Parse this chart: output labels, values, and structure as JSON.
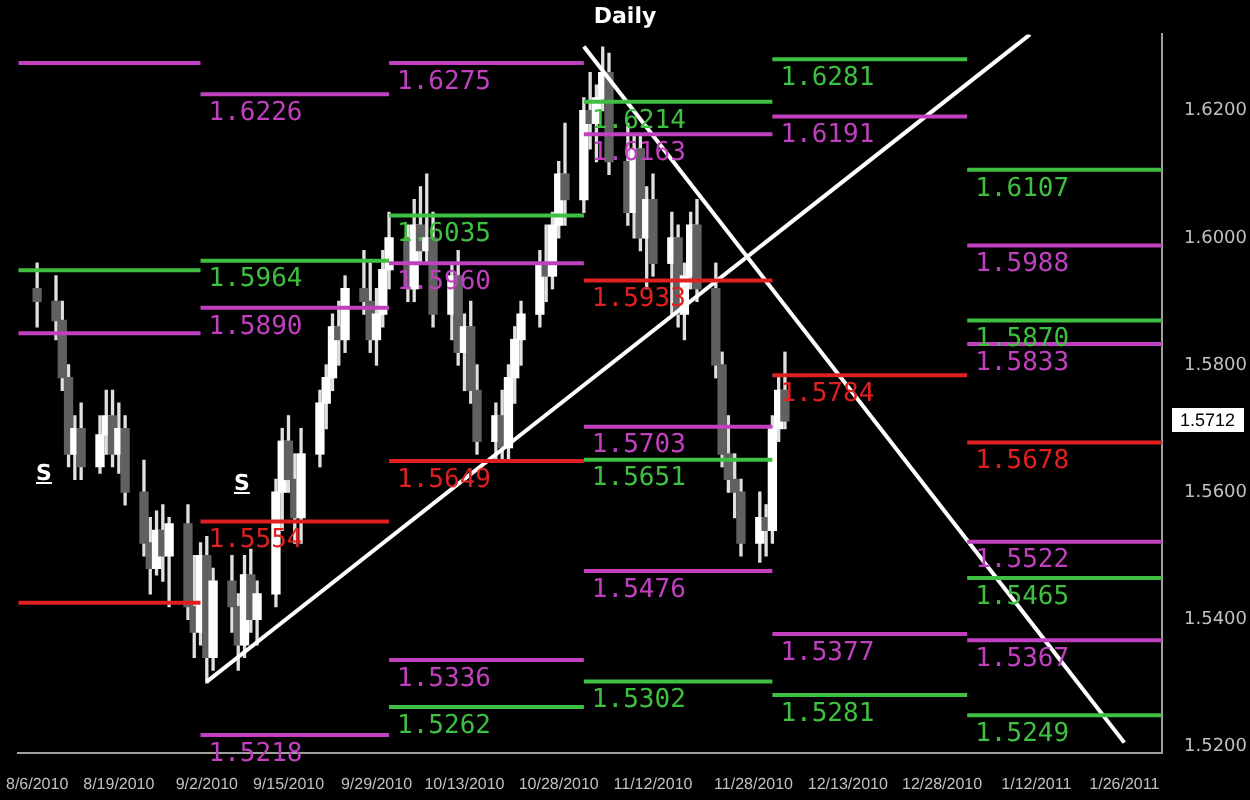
{
  "chart_data": {
    "type": "candlestick",
    "title": "Daily",
    "x": [
      "2010-08-06",
      "2010-08-09",
      "2010-08-10",
      "2010-08-11",
      "2010-08-12",
      "2010-08-13",
      "2010-08-16",
      "2010-08-17",
      "2010-08-18",
      "2010-08-19",
      "2010-08-20",
      "2010-08-23",
      "2010-08-24",
      "2010-08-25",
      "2010-08-26",
      "2010-08-27",
      "2010-08-30",
      "2010-08-31",
      "2010-09-01",
      "2010-09-02",
      "2010-09-03",
      "2010-09-06",
      "2010-09-07",
      "2010-09-08",
      "2010-09-09",
      "2010-09-10",
      "2010-09-13",
      "2010-09-14",
      "2010-09-15",
      "2010-09-16",
      "2010-09-17",
      "2010-09-20",
      "2010-09-21",
      "2010-09-22",
      "2010-09-23",
      "2010-09-24",
      "2010-09-27",
      "2010-09-28",
      "2010-09-29",
      "2010-09-30",
      "2010-10-01",
      "2010-10-04",
      "2010-10-05",
      "2010-10-06",
      "2010-10-07",
      "2010-10-08",
      "2010-10-11",
      "2010-10-12",
      "2010-10-13",
      "2010-10-14",
      "2010-10-15",
      "2010-10-18",
      "2010-10-19",
      "2010-10-20",
      "2010-10-21",
      "2010-10-22",
      "2010-10-25",
      "2010-10-26",
      "2010-10-27",
      "2010-10-28",
      "2010-10-29",
      "2010-11-01",
      "2010-11-02",
      "2010-11-03",
      "2010-11-04",
      "2010-11-05",
      "2010-11-08",
      "2010-11-09",
      "2010-11-10",
      "2010-11-11",
      "2010-11-12",
      "2010-11-15",
      "2010-11-16",
      "2010-11-17",
      "2010-11-18",
      "2010-11-19",
      "2010-11-22",
      "2010-11-23",
      "2010-11-24",
      "2010-11-25",
      "2010-11-26",
      "2010-11-29",
      "2010-11-30",
      "2010-12-01",
      "2010-12-02",
      "2010-12-03"
    ],
    "ohlc": [
      [
        1.592,
        1.596,
        1.586,
        1.59
      ],
      [
        1.59,
        1.594,
        1.584,
        1.587
      ],
      [
        1.587,
        1.59,
        1.576,
        1.578
      ],
      [
        1.578,
        1.58,
        1.564,
        1.566
      ],
      [
        1.566,
        1.572,
        1.562,
        1.57
      ],
      [
        1.57,
        1.574,
        1.562,
        1.564
      ],
      [
        1.564,
        1.572,
        1.563,
        1.569
      ],
      [
        1.569,
        1.576,
        1.566,
        1.572
      ],
      [
        1.572,
        1.576,
        1.564,
        1.566
      ],
      [
        1.566,
        1.574,
        1.563,
        1.57
      ],
      [
        1.57,
        1.572,
        1.558,
        1.56
      ],
      [
        1.56,
        1.565,
        1.55,
        1.552
      ],
      [
        1.552,
        1.556,
        1.544,
        1.548
      ],
      [
        1.548,
        1.557,
        1.547,
        1.554
      ],
      [
        1.554,
        1.558,
        1.546,
        1.55
      ],
      [
        1.55,
        1.556,
        1.542,
        1.555
      ],
      [
        1.555,
        1.558,
        1.54,
        1.542
      ],
      [
        1.542,
        1.55,
        1.534,
        1.538
      ],
      [
        1.538,
        1.552,
        1.536,
        1.55
      ],
      [
        1.55,
        1.553,
        1.53,
        1.534
      ],
      [
        1.534,
        1.548,
        1.532,
        1.546
      ],
      [
        1.546,
        1.55,
        1.538,
        1.542
      ],
      [
        1.542,
        1.544,
        1.532,
        1.536
      ],
      [
        1.536,
        1.55,
        1.534,
        1.547
      ],
      [
        1.547,
        1.551,
        1.538,
        1.54
      ],
      [
        1.54,
        1.546,
        1.536,
        1.544
      ],
      [
        1.544,
        1.562,
        1.542,
        1.56
      ],
      [
        1.56,
        1.57,
        1.554,
        1.568
      ],
      [
        1.568,
        1.572,
        1.56,
        1.562
      ],
      [
        1.562,
        1.566,
        1.552,
        1.556
      ],
      [
        1.556,
        1.57,
        1.552,
        1.566
      ],
      [
        1.566,
        1.576,
        1.564,
        1.574
      ],
      [
        1.574,
        1.58,
        1.57,
        1.578
      ],
      [
        1.578,
        1.588,
        1.576,
        1.586
      ],
      [
        1.586,
        1.59,
        1.58,
        1.584
      ],
      [
        1.584,
        1.594,
        1.582,
        1.592
      ],
      [
        1.592,
        1.598,
        1.588,
        1.59
      ],
      [
        1.59,
        1.596,
        1.582,
        1.584
      ],
      [
        1.584,
        1.592,
        1.58,
        1.588
      ],
      [
        1.588,
        1.598,
        1.586,
        1.595
      ],
      [
        1.595,
        1.604,
        1.592,
        1.6
      ],
      [
        1.6,
        1.602,
        1.59,
        1.592
      ],
      [
        1.592,
        1.606,
        1.59,
        1.602
      ],
      [
        1.602,
        1.608,
        1.596,
        1.598
      ],
      [
        1.598,
        1.61,
        1.596,
        1.6
      ],
      [
        1.6,
        1.604,
        1.586,
        1.588
      ],
      [
        1.588,
        1.596,
        1.584,
        1.594
      ],
      [
        1.594,
        1.598,
        1.58,
        1.582
      ],
      [
        1.582,
        1.588,
        1.576,
        1.586
      ],
      [
        1.586,
        1.59,
        1.574,
        1.576
      ],
      [
        1.576,
        1.58,
        1.566,
        1.568
      ],
      [
        1.568,
        1.574,
        1.565,
        1.572
      ],
      [
        1.572,
        1.576,
        1.565,
        1.567
      ],
      [
        1.567,
        1.58,
        1.565,
        1.578
      ],
      [
        1.578,
        1.586,
        1.574,
        1.584
      ],
      [
        1.584,
        1.59,
        1.58,
        1.588
      ],
      [
        1.588,
        1.598,
        1.586,
        1.596
      ],
      [
        1.596,
        1.602,
        1.59,
        1.594
      ],
      [
        1.594,
        1.604,
        1.592,
        1.602
      ],
      [
        1.602,
        1.612,
        1.6,
        1.61
      ],
      [
        1.61,
        1.618,
        1.602,
        1.606
      ],
      [
        1.606,
        1.622,
        1.604,
        1.62
      ],
      [
        1.62,
        1.626,
        1.614,
        1.618
      ],
      [
        1.618,
        1.624,
        1.612,
        1.622
      ],
      [
        1.622,
        1.63,
        1.62,
        1.626
      ],
      [
        1.626,
        1.629,
        1.61,
        1.612
      ],
      [
        1.612,
        1.618,
        1.602,
        1.604
      ],
      [
        1.604,
        1.616,
        1.6,
        1.614
      ],
      [
        1.614,
        1.616,
        1.598,
        1.6
      ],
      [
        1.6,
        1.608,
        1.592,
        1.606
      ],
      [
        1.606,
        1.61,
        1.594,
        1.596
      ],
      [
        1.596,
        1.604,
        1.588,
        1.6
      ],
      [
        1.6,
        1.602,
        1.586,
        1.588
      ],
      [
        1.588,
        1.596,
        1.584,
        1.594
      ],
      [
        1.594,
        1.604,
        1.592,
        1.602
      ],
      [
        1.602,
        1.606,
        1.59,
        1.592
      ],
      [
        1.592,
        1.596,
        1.578,
        1.58
      ],
      [
        1.58,
        1.582,
        1.564,
        1.566
      ],
      [
        1.566,
        1.572,
        1.56,
        1.562
      ],
      [
        1.562,
        1.566,
        1.556,
        1.56
      ],
      [
        1.56,
        1.562,
        1.55,
        1.552
      ],
      [
        1.552,
        1.56,
        1.549,
        1.556
      ],
      [
        1.556,
        1.558,
        1.55,
        1.554
      ],
      [
        1.554,
        1.572,
        1.552,
        1.57
      ],
      [
        1.57,
        1.578,
        1.568,
        1.576
      ],
      [
        1.576,
        1.582,
        1.57,
        1.5712
      ]
    ],
    "xlim": [
      "2010-08-03",
      "2011-02-01"
    ],
    "xticks": [
      {
        "value": "2010-08-06",
        "label": "8/6/2010"
      },
      {
        "value": "2010-08-19",
        "label": "8/19/2010"
      },
      {
        "value": "2010-09-02",
        "label": "9/2/2010"
      },
      {
        "value": "2010-09-15",
        "label": "9/15/2010"
      },
      {
        "value": "2010-09-29",
        "label": "9/29/2010"
      },
      {
        "value": "2010-10-13",
        "label": "10/13/2010"
      },
      {
        "value": "2010-10-28",
        "label": "10/28/2010"
      },
      {
        "value": "2010-11-12",
        "label": "11/12/2010"
      },
      {
        "value": "2010-11-28",
        "label": "11/28/2010"
      },
      {
        "value": "2010-12-13",
        "label": "12/13/2010"
      },
      {
        "value": "2010-12-28",
        "label": "12/28/2010"
      },
      {
        "value": "2011-01-12",
        "label": "1/12/2011"
      },
      {
        "value": "2011-01-26",
        "label": "1/26/2011"
      }
    ],
    "ylim": [
      1.519,
      1.632
    ],
    "yticks": [
      {
        "value": 1.52,
        "label": "1.5200"
      },
      {
        "value": 1.54,
        "label": "1.5400"
      },
      {
        "value": 1.56,
        "label": "1.5600"
      },
      {
        "value": 1.58,
        "label": "1.5800"
      },
      {
        "value": 1.6,
        "label": "1.6000"
      },
      {
        "value": 1.62,
        "label": "1.6200"
      }
    ],
    "grid": false,
    "series": [
      {
        "type": "line",
        "x": [
          "2010-08-03",
          "2010-09-01"
        ],
        "values": [
          1.6275,
          1.6275
        ],
        "color": "#c040c0"
      },
      {
        "type": "line",
        "x": [
          "2010-08-03",
          "2010-09-01"
        ],
        "values": [
          1.5949,
          1.5949
        ],
        "color": "#40c040"
      },
      {
        "type": "line",
        "x": [
          "2010-08-03",
          "2010-09-01"
        ],
        "values": [
          1.585,
          1.585
        ],
        "color": "#c040c0"
      },
      {
        "type": "line",
        "x": [
          "2010-08-03",
          "2010-09-01"
        ],
        "values": [
          1.5426,
          1.5426
        ],
        "color": "#e02020"
      },
      {
        "type": "line",
        "x": [
          "2010-09-01",
          "2010-10-01"
        ],
        "values": [
          1.6226,
          1.6226
        ],
        "color": "#c040c0",
        "name": "1.6226"
      },
      {
        "type": "line",
        "x": [
          "2010-09-01",
          "2010-10-01"
        ],
        "values": [
          1.5964,
          1.5964
        ],
        "color": "#40c040",
        "name": "1.5964"
      },
      {
        "type": "line",
        "x": [
          "2010-09-01",
          "2010-10-01"
        ],
        "values": [
          1.589,
          1.589
        ],
        "color": "#c040c0",
        "name": "1.5890"
      },
      {
        "type": "line",
        "x": [
          "2010-09-01",
          "2010-10-01"
        ],
        "values": [
          1.5554,
          1.5554
        ],
        "color": "#e02020",
        "name": "1.5554"
      },
      {
        "type": "line",
        "x": [
          "2010-09-01",
          "2010-10-01"
        ],
        "values": [
          1.5218,
          1.5218
        ],
        "color": "#c040c0",
        "name": "1.5218"
      },
      {
        "type": "line",
        "x": [
          "2010-10-01",
          "2010-11-01"
        ],
        "values": [
          1.6275,
          1.6275
        ],
        "color": "#c040c0",
        "name": "1.6275"
      },
      {
        "type": "line",
        "x": [
          "2010-10-01",
          "2010-11-01"
        ],
        "values": [
          1.6035,
          1.6035
        ],
        "color": "#40c040",
        "name": "1.6035"
      },
      {
        "type": "line",
        "x": [
          "2010-10-01",
          "2010-11-01"
        ],
        "values": [
          1.596,
          1.596
        ],
        "color": "#c040c0",
        "name": "1.5960"
      },
      {
        "type": "line",
        "x": [
          "2010-10-01",
          "2010-11-01"
        ],
        "values": [
          1.5649,
          1.5649
        ],
        "color": "#e02020",
        "name": "1.5649"
      },
      {
        "type": "line",
        "x": [
          "2010-10-01",
          "2010-11-01"
        ],
        "values": [
          1.5336,
          1.5336
        ],
        "color": "#c040c0",
        "name": "1.5336"
      },
      {
        "type": "line",
        "x": [
          "2010-10-01",
          "2010-11-01"
        ],
        "values": [
          1.5262,
          1.5262
        ],
        "color": "#40c040",
        "name": "1.5262"
      },
      {
        "type": "line",
        "x": [
          "2010-11-01",
          "2010-12-01"
        ],
        "values": [
          1.6214,
          1.6214
        ],
        "color": "#40c040",
        "name": "1.6214"
      },
      {
        "type": "line",
        "x": [
          "2010-11-01",
          "2010-12-01"
        ],
        "values": [
          1.6163,
          1.6163
        ],
        "color": "#c040c0",
        "name": "1.6163"
      },
      {
        "type": "line",
        "x": [
          "2010-11-01",
          "2010-12-01"
        ],
        "values": [
          1.5933,
          1.5933
        ],
        "color": "#e02020",
        "name": "1.5933"
      },
      {
        "type": "line",
        "x": [
          "2010-11-01",
          "2010-12-01"
        ],
        "values": [
          1.5703,
          1.5703
        ],
        "color": "#c040c0",
        "name": "1.5703"
      },
      {
        "type": "line",
        "x": [
          "2010-11-01",
          "2010-12-01"
        ],
        "values": [
          1.5651,
          1.5651
        ],
        "color": "#40c040",
        "name": "1.5651"
      },
      {
        "type": "line",
        "x": [
          "2010-11-01",
          "2010-12-01"
        ],
        "values": [
          1.5476,
          1.5476
        ],
        "color": "#c040c0",
        "name": "1.5476"
      },
      {
        "type": "line",
        "x": [
          "2010-11-01",
          "2010-12-01"
        ],
        "values": [
          1.5302,
          1.5302
        ],
        "color": "#40c040",
        "name": "1.5302"
      },
      {
        "type": "line",
        "x": [
          "2010-12-01",
          "2011-01-01"
        ],
        "values": [
          1.6281,
          1.6281
        ],
        "color": "#40c040",
        "name": "1.6281"
      },
      {
        "type": "line",
        "x": [
          "2010-12-01",
          "2011-01-01"
        ],
        "values": [
          1.6191,
          1.6191
        ],
        "color": "#c040c0",
        "name": "1.6191"
      },
      {
        "type": "line",
        "x": [
          "2010-12-01",
          "2011-01-01"
        ],
        "values": [
          1.5784,
          1.5784
        ],
        "color": "#e02020",
        "name": "1.5784"
      },
      {
        "type": "line",
        "x": [
          "2010-12-01",
          "2011-01-01"
        ],
        "values": [
          1.5377,
          1.5377
        ],
        "color": "#c040c0",
        "name": "1.5377"
      },
      {
        "type": "line",
        "x": [
          "2010-12-01",
          "2011-01-01"
        ],
        "values": [
          1.5281,
          1.5281
        ],
        "color": "#40c040",
        "name": "1.5281"
      },
      {
        "type": "line",
        "x": [
          "2011-01-01",
          "2011-02-01"
        ],
        "values": [
          1.6107,
          1.6107
        ],
        "color": "#40c040",
        "name": "1.6107"
      },
      {
        "type": "line",
        "x": [
          "2011-01-01",
          "2011-02-01"
        ],
        "values": [
          1.5988,
          1.5988
        ],
        "color": "#c040c0",
        "name": "1.5988"
      },
      {
        "type": "line",
        "x": [
          "2011-01-01",
          "2011-02-01"
        ],
        "values": [
          1.587,
          1.587
        ],
        "color": "#40c040",
        "name": "1.5870"
      },
      {
        "type": "line",
        "x": [
          "2011-01-01",
          "2011-02-01"
        ],
        "values": [
          1.5833,
          1.5833
        ],
        "color": "#c040c0",
        "name": "1.5833"
      },
      {
        "type": "line",
        "x": [
          "2011-01-01",
          "2011-02-01"
        ],
        "values": [
          1.5678,
          1.5678
        ],
        "color": "#e02020",
        "name": "1.5678"
      },
      {
        "type": "line",
        "x": [
          "2011-01-01",
          "2011-02-01"
        ],
        "values": [
          1.5522,
          1.5522
        ],
        "color": "#c040c0",
        "name": "1.5522"
      },
      {
        "type": "line",
        "x": [
          "2011-01-01",
          "2011-02-01"
        ],
        "values": [
          1.5465,
          1.5465
        ],
        "color": "#40c040",
        "name": "1.5465"
      },
      {
        "type": "line",
        "x": [
          "2011-01-01",
          "2011-02-01"
        ],
        "values": [
          1.5367,
          1.5367
        ],
        "color": "#c040c0",
        "name": "1.5367"
      },
      {
        "type": "line",
        "x": [
          "2011-01-01",
          "2011-02-01"
        ],
        "values": [
          1.5249,
          1.5249
        ],
        "color": "#40c040",
        "name": "1.5249"
      },
      {
        "type": "line",
        "x": [
          "2010-09-02",
          "2011-01-11"
        ],
        "values": [
          1.5302,
          1.632
        ],
        "color": "#ffffff"
      },
      {
        "type": "line",
        "x": [
          "2010-11-01",
          "2011-01-26"
        ],
        "values": [
          1.6301,
          1.5206
        ],
        "color": "#ffffff"
      }
    ],
    "annotations": [
      "S",
      "S",
      "1.5712"
    ]
  }
}
